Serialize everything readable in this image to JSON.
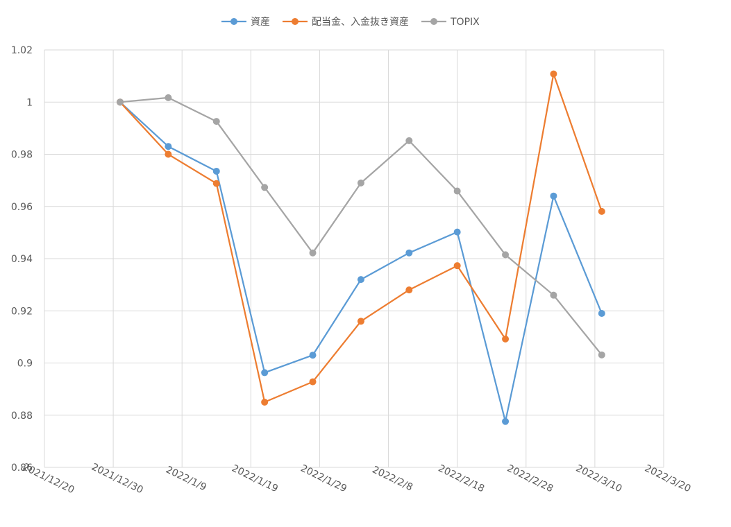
{
  "chart_data": {
    "type": "line",
    "title": "",
    "xlabel": "",
    "ylabel": "",
    "ylim": [
      0.86,
      1.02
    ],
    "y_ticks": [
      0.86,
      0.88,
      0.9,
      0.92,
      0.94,
      0.96,
      0.98,
      1,
      1.02
    ],
    "y_tick_labels": [
      "0.86",
      "0.88",
      "0.9",
      "0.92",
      "0.94",
      "0.96",
      "0.98",
      "1",
      "1.02"
    ],
    "xlim": [
      "2021-12-20",
      "2022-03-20"
    ],
    "x_ticks": [
      "2021-12-20",
      "2021-12-30",
      "2022-01-09",
      "2022-01-19",
      "2022-01-29",
      "2022-02-08",
      "2022-02-18",
      "2022-02-28",
      "2022-03-10",
      "2022-03-20"
    ],
    "x_tick_labels": [
      "2021/12/20",
      "2021/12/30",
      "2022/1/9",
      "2022/1/19",
      "2022/1/29",
      "2022/2/8",
      "2022/2/18",
      "2022/2/28",
      "2022/3/10",
      "2022/3/20"
    ],
    "grid": true,
    "legend_position": "top",
    "x": [
      "2021-12-31",
      "2022-01-07",
      "2022-01-14",
      "2022-01-21",
      "2022-01-28",
      "2022-02-04",
      "2022-02-11",
      "2022-02-18",
      "2022-02-25",
      "2022-03-04",
      "2022-03-11"
    ],
    "series": [
      {
        "name": "資産",
        "color": "#5B9BD5",
        "values": [
          1.0,
          0.983,
          0.9735,
          0.8963,
          0.903,
          0.932,
          0.9422,
          0.9502,
          0.8776,
          0.964,
          0.919
        ]
      },
      {
        "name": "配当金、入金抜き資産",
        "color": "#ED7D31",
        "values": [
          1.0,
          0.98,
          0.9688,
          0.885,
          0.8928,
          0.916,
          0.928,
          0.9373,
          0.9092,
          1.0108,
          0.9581
        ]
      },
      {
        "name": "TOPIX",
        "color": "#A5A5A5",
        "values": [
          1.0,
          1.0017,
          0.9926,
          0.9673,
          0.9422,
          0.969,
          0.9852,
          0.9659,
          0.9415,
          0.926,
          0.9031
        ]
      }
    ]
  }
}
